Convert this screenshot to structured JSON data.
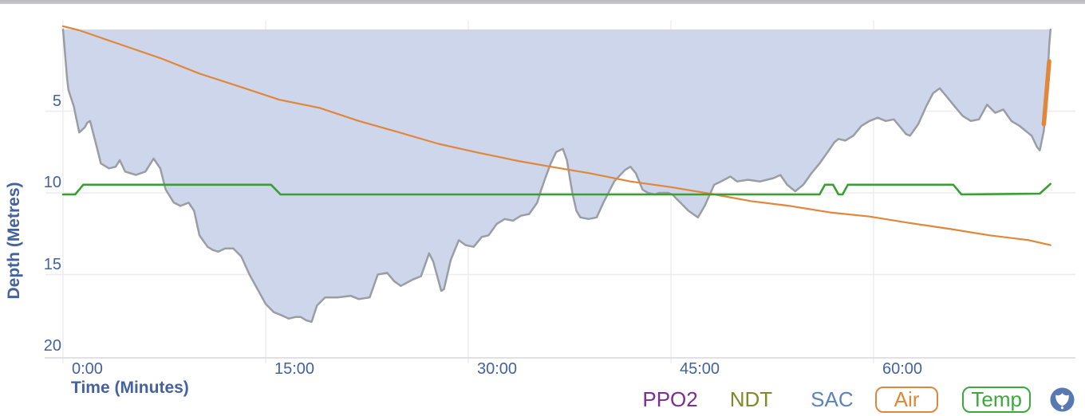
{
  "meta": {
    "background": "#ffffff",
    "top_bar_color": "#c3c3c6"
  },
  "axis": {
    "x_title": "Time (Minutes)",
    "y_title": "Depth (Metres)",
    "label_color": "#44629f",
    "gridline_color": "#ececf0",
    "axis_line_color": "#d7d7db"
  },
  "chart_data": {
    "type": "area",
    "title": "",
    "xlabel": "Time (Minutes)",
    "ylabel": "Depth (Metres)",
    "x_tick_labels": [
      "0:00",
      "15:00",
      "30:00",
      "45:00",
      "60:00"
    ],
    "x_tick_minutes": [
      0,
      15,
      30,
      45,
      60
    ],
    "y_tick_labels": [
      "5",
      "10",
      "15",
      "20"
    ],
    "y_tick_depths": [
      5,
      10,
      15,
      20
    ],
    "xlim_minutes": [
      0,
      75
    ],
    "ylim_metres": [
      0,
      20.1
    ],
    "grid": true,
    "legend_position": "bottom-right",
    "series": [
      {
        "name": "Depth",
        "type": "area",
        "line_color": "#9a9da3",
        "fill_color": "#cdd6ea",
        "points_min_depth": [
          [
            0,
            0
          ],
          [
            0.3,
            3.0
          ],
          [
            0.4,
            3.7
          ],
          [
            0.8,
            4.7
          ],
          [
            1.2,
            6.3
          ],
          [
            1.6,
            6.0
          ],
          [
            1.8,
            5.7
          ],
          [
            2.0,
            5.6
          ],
          [
            2.5,
            7.2
          ],
          [
            2.8,
            8.2
          ],
          [
            3.4,
            8.5
          ],
          [
            3.9,
            8.4
          ],
          [
            4.2,
            8.0
          ],
          [
            4.6,
            8.7
          ],
          [
            5.0,
            8.8
          ],
          [
            5.4,
            8.9
          ],
          [
            6.1,
            8.7
          ],
          [
            6.7,
            7.9
          ],
          [
            7.2,
            8.5
          ],
          [
            7.6,
            9.8
          ],
          [
            8.2,
            10.6
          ],
          [
            8.7,
            10.8
          ],
          [
            9.3,
            10.6
          ],
          [
            9.7,
            11.1
          ],
          [
            10.1,
            12.6
          ],
          [
            10.7,
            13.3
          ],
          [
            11.1,
            13.5
          ],
          [
            11.5,
            13.6
          ],
          [
            12.0,
            13.4
          ],
          [
            12.6,
            13.4
          ],
          [
            13.2,
            13.9
          ],
          [
            13.8,
            15.0
          ],
          [
            14.4,
            15.9
          ],
          [
            15.0,
            16.8
          ],
          [
            15.6,
            17.3
          ],
          [
            16.2,
            17.5
          ],
          [
            16.7,
            17.7
          ],
          [
            17.2,
            17.6
          ],
          [
            17.6,
            17.6
          ],
          [
            18.0,
            17.8
          ],
          [
            18.4,
            17.9
          ],
          [
            18.8,
            16.9
          ],
          [
            19.4,
            16.4
          ],
          [
            20.3,
            16.4
          ],
          [
            21.3,
            16.3
          ],
          [
            21.9,
            16.5
          ],
          [
            22.7,
            16.4
          ],
          [
            23.3,
            15.0
          ],
          [
            24.0,
            14.9
          ],
          [
            24.5,
            15.4
          ],
          [
            25.0,
            15.7
          ],
          [
            25.9,
            15.3
          ],
          [
            26.5,
            15.1
          ],
          [
            27.1,
            13.7
          ],
          [
            27.4,
            14.2
          ],
          [
            28.0,
            16.0
          ],
          [
            28.2,
            15.9
          ],
          [
            28.7,
            14.1
          ],
          [
            29.3,
            12.9
          ],
          [
            29.8,
            13.2
          ],
          [
            30.4,
            13.3
          ],
          [
            31.0,
            12.7
          ],
          [
            31.5,
            12.6
          ],
          [
            32.1,
            11.9
          ],
          [
            32.7,
            11.6
          ],
          [
            33.3,
            11.7
          ],
          [
            33.9,
            11.4
          ],
          [
            34.5,
            11.3
          ],
          [
            35.1,
            10.6
          ],
          [
            35.4,
            9.8
          ],
          [
            35.7,
            9.1
          ],
          [
            36.1,
            8.2
          ],
          [
            36.5,
            7.5
          ],
          [
            37.0,
            7.3
          ],
          [
            37.3,
            8.0
          ],
          [
            37.7,
            10.0
          ],
          [
            38.0,
            11.1
          ],
          [
            38.3,
            11.5
          ],
          [
            38.9,
            11.6
          ],
          [
            39.5,
            11.5
          ],
          [
            40.0,
            10.6
          ],
          [
            40.8,
            9.3
          ],
          [
            41.6,
            8.6
          ],
          [
            42.0,
            8.4
          ],
          [
            42.4,
            8.8
          ],
          [
            42.9,
            9.8
          ],
          [
            43.3,
            10.0
          ],
          [
            43.8,
            10.1
          ],
          [
            44.1,
            10.0
          ],
          [
            44.8,
            10.0
          ],
          [
            45.1,
            10.1
          ],
          [
            45.7,
            10.6
          ],
          [
            46.3,
            11.1
          ],
          [
            47.0,
            11.5
          ],
          [
            47.5,
            10.8
          ],
          [
            48.2,
            9.5
          ],
          [
            48.7,
            9.3
          ],
          [
            49.4,
            9.0
          ],
          [
            49.9,
            9.3
          ],
          [
            50.7,
            9.2
          ],
          [
            51.6,
            9.3
          ],
          [
            52.6,
            9.1
          ],
          [
            53.1,
            8.9
          ],
          [
            53.6,
            9.5
          ],
          [
            54.2,
            9.9
          ],
          [
            54.8,
            9.5
          ],
          [
            55.4,
            8.8
          ],
          [
            56.0,
            8.2
          ],
          [
            56.6,
            7.5
          ],
          [
            57.1,
            6.9
          ],
          [
            57.4,
            6.7
          ],
          [
            57.9,
            6.8
          ],
          [
            58.5,
            6.5
          ],
          [
            59.1,
            5.9
          ],
          [
            59.7,
            5.6
          ],
          [
            60.3,
            5.4
          ],
          [
            60.9,
            5.6
          ],
          [
            61.5,
            5.5
          ],
          [
            62.0,
            6.0
          ],
          [
            62.4,
            6.4
          ],
          [
            62.7,
            6.5
          ],
          [
            63.3,
            5.8
          ],
          [
            63.9,
            4.7
          ],
          [
            64.4,
            3.9
          ],
          [
            64.9,
            3.6
          ],
          [
            65.4,
            4.1
          ],
          [
            66.0,
            4.7
          ],
          [
            66.6,
            5.3
          ],
          [
            67.2,
            5.6
          ],
          [
            67.8,
            5.5
          ],
          [
            68.4,
            4.6
          ],
          [
            69.0,
            5.1
          ],
          [
            69.6,
            4.9
          ],
          [
            70.2,
            5.6
          ],
          [
            70.8,
            5.9
          ],
          [
            71.1,
            6.1
          ],
          [
            71.7,
            6.5
          ],
          [
            72.1,
            7.2
          ],
          [
            72.3,
            7.4
          ],
          [
            72.6,
            6.2
          ],
          [
            72.8,
            4.2
          ],
          [
            72.9,
            2.6
          ],
          [
            73.0,
            1.0
          ],
          [
            73.1,
            0
          ]
        ]
      },
      {
        "name": "Air",
        "type": "line",
        "color": "#e0873b",
        "value_axis": "hidden",
        "points_min_depthscale": [
          [
            0,
            -0.2
          ],
          [
            1.2,
            0.05
          ],
          [
            4.2,
            0.9
          ],
          [
            7.2,
            1.75
          ],
          [
            10.1,
            2.7
          ],
          [
            13.1,
            3.5
          ],
          [
            16.0,
            4.3
          ],
          [
            19.0,
            4.8
          ],
          [
            21.9,
            5.6
          ],
          [
            24.9,
            6.3
          ],
          [
            27.8,
            7.0
          ],
          [
            30.8,
            7.55
          ],
          [
            33.7,
            8.05
          ],
          [
            36.1,
            8.4
          ],
          [
            39.0,
            8.8
          ],
          [
            42.0,
            9.3
          ],
          [
            45.0,
            9.65
          ],
          [
            47.9,
            10.05
          ],
          [
            50.9,
            10.5
          ],
          [
            53.8,
            10.8
          ],
          [
            56.8,
            11.2
          ],
          [
            59.7,
            11.45
          ],
          [
            62.7,
            11.85
          ],
          [
            65.6,
            12.2
          ],
          [
            68.6,
            12.6
          ],
          [
            71.5,
            12.9
          ],
          [
            73.1,
            13.2
          ]
        ],
        "end_spike_points_min_depthscale": [
          [
            72.6,
            5.8
          ],
          [
            73.0,
            1.95
          ]
        ]
      },
      {
        "name": "Temp",
        "type": "line",
        "color": "#3a9e35",
        "value_axis": "hidden",
        "points_min_depthscale": [
          [
            0,
            10.1
          ],
          [
            0.9,
            10.1
          ],
          [
            1.5,
            9.5
          ],
          [
            15.4,
            9.5
          ],
          [
            16.1,
            10.1
          ],
          [
            56.0,
            10.1
          ],
          [
            56.4,
            9.5
          ],
          [
            57.0,
            9.5
          ],
          [
            57.4,
            10.1
          ],
          [
            57.7,
            10.1
          ],
          [
            58.1,
            9.5
          ],
          [
            65.9,
            9.5
          ],
          [
            66.5,
            10.1
          ],
          [
            72.3,
            10.05
          ],
          [
            73.1,
            9.45
          ]
        ]
      }
    ]
  },
  "legend": {
    "items": [
      {
        "label": "PPO2",
        "color": "#7c2d96",
        "boxed": false
      },
      {
        "label": "NDT",
        "color": "#7e8b28",
        "boxed": false
      },
      {
        "label": "SAC",
        "color": "#5d82c1",
        "boxed": false
      },
      {
        "label": "Air",
        "color": "#e0873b",
        "boxed": true
      },
      {
        "label": "Temp",
        "color": "#3ba93c",
        "boxed": true
      }
    ]
  },
  "shield_button": {
    "circle_color": "#5878b2",
    "glyph_color": "#ffffff",
    "glyph": "shield"
  }
}
